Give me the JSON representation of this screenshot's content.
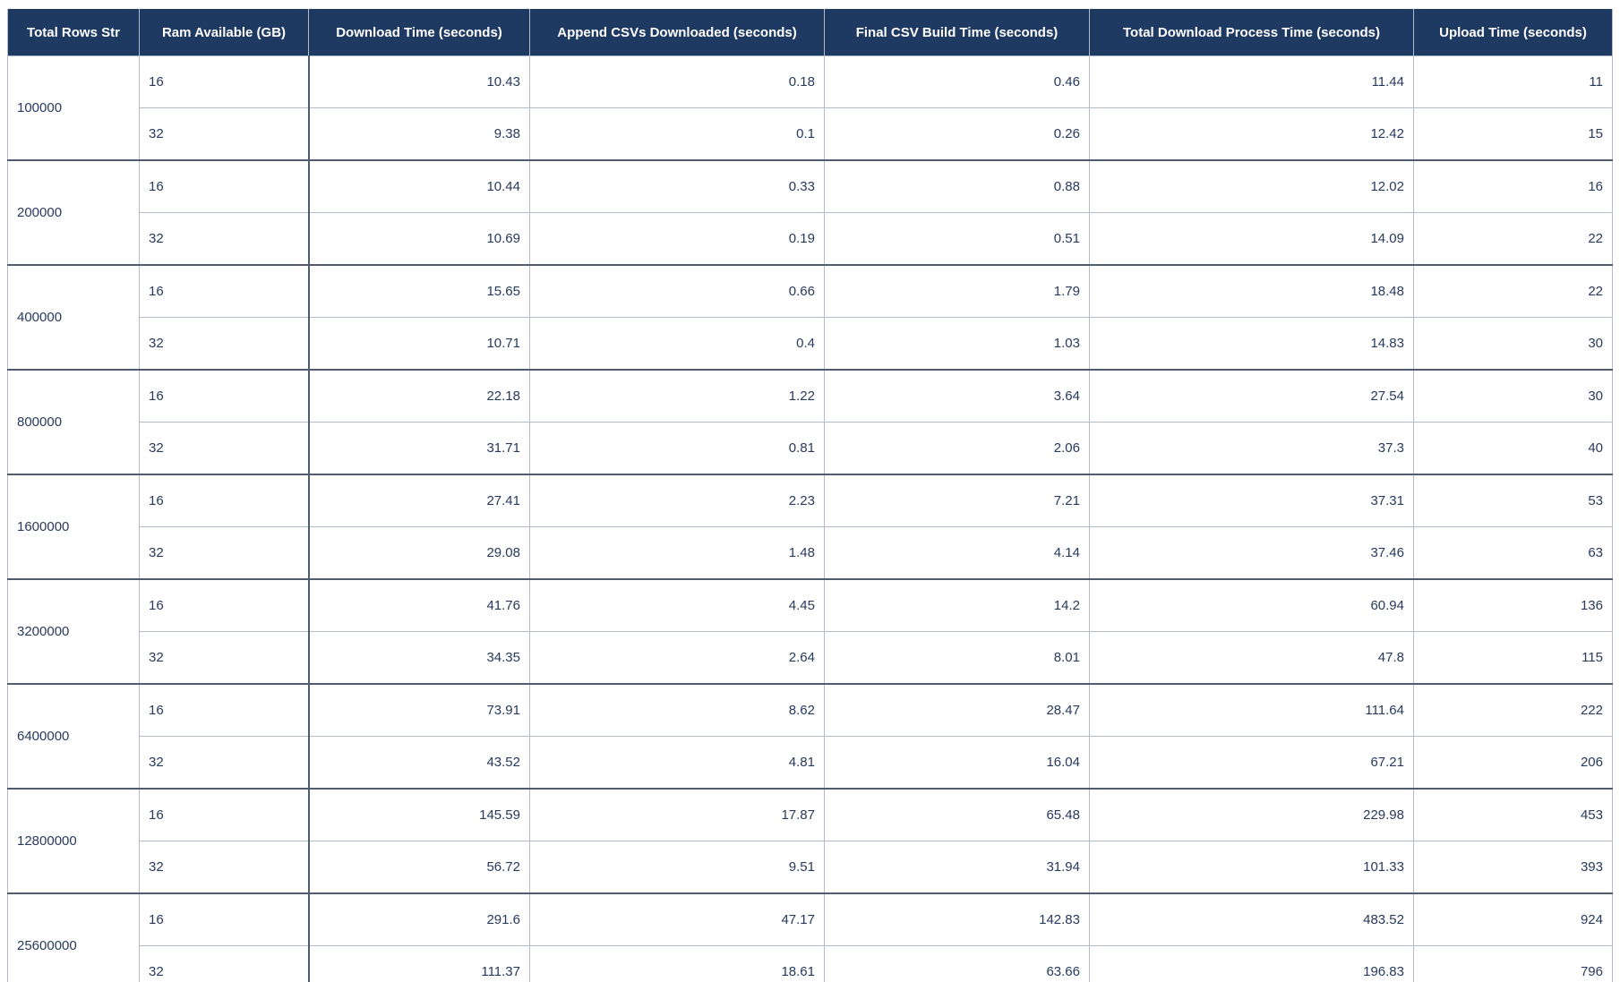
{
  "colors": {
    "header_bg": "#1E3A63",
    "header_text": "#FFFFFF",
    "body_text": "#27395C",
    "border_light": "#B4BCC9",
    "border_dark": "#4F5B6E",
    "background": "#FFFFFF"
  },
  "chart_data": {
    "type": "table",
    "title": "",
    "columns": [
      "Total Rows Str",
      "Ram Available (GB)",
      "Download Time (seconds)",
      "Append CSVs Downloaded (seconds)",
      "Final CSV Build Time (seconds)",
      "Total Download Process Time (seconds)",
      "Upload Time (seconds)"
    ],
    "groups": [
      {
        "total_rows_str": "100000",
        "rows": [
          {
            "ram_gb": "16",
            "download": "10.43",
            "append": "0.18",
            "build": "0.46",
            "total": "11.44",
            "upload": "11"
          },
          {
            "ram_gb": "32",
            "download": "9.38",
            "append": "0.1",
            "build": "0.26",
            "total": "12.42",
            "upload": "15"
          }
        ]
      },
      {
        "total_rows_str": "200000",
        "rows": [
          {
            "ram_gb": "16",
            "download": "10.44",
            "append": "0.33",
            "build": "0.88",
            "total": "12.02",
            "upload": "16"
          },
          {
            "ram_gb": "32",
            "download": "10.69",
            "append": "0.19",
            "build": "0.51",
            "total": "14.09",
            "upload": "22"
          }
        ]
      },
      {
        "total_rows_str": "400000",
        "rows": [
          {
            "ram_gb": "16",
            "download": "15.65",
            "append": "0.66",
            "build": "1.79",
            "total": "18.48",
            "upload": "22"
          },
          {
            "ram_gb": "32",
            "download": "10.71",
            "append": "0.4",
            "build": "1.03",
            "total": "14.83",
            "upload": "30"
          }
        ]
      },
      {
        "total_rows_str": "800000",
        "rows": [
          {
            "ram_gb": "16",
            "download": "22.18",
            "append": "1.22",
            "build": "3.64",
            "total": "27.54",
            "upload": "30"
          },
          {
            "ram_gb": "32",
            "download": "31.71",
            "append": "0.81",
            "build": "2.06",
            "total": "37.3",
            "upload": "40"
          }
        ]
      },
      {
        "total_rows_str": "1600000",
        "rows": [
          {
            "ram_gb": "16",
            "download": "27.41",
            "append": "2.23",
            "build": "7.21",
            "total": "37.31",
            "upload": "53"
          },
          {
            "ram_gb": "32",
            "download": "29.08",
            "append": "1.48",
            "build": "4.14",
            "total": "37.46",
            "upload": "63"
          }
        ]
      },
      {
        "total_rows_str": "3200000",
        "rows": [
          {
            "ram_gb": "16",
            "download": "41.76",
            "append": "4.45",
            "build": "14.2",
            "total": "60.94",
            "upload": "136"
          },
          {
            "ram_gb": "32",
            "download": "34.35",
            "append": "2.64",
            "build": "8.01",
            "total": "47.8",
            "upload": "115"
          }
        ]
      },
      {
        "total_rows_str": "6400000",
        "rows": [
          {
            "ram_gb": "16",
            "download": "73.91",
            "append": "8.62",
            "build": "28.47",
            "total": "111.64",
            "upload": "222"
          },
          {
            "ram_gb": "32",
            "download": "43.52",
            "append": "4.81",
            "build": "16.04",
            "total": "67.21",
            "upload": "206"
          }
        ]
      },
      {
        "total_rows_str": "12800000",
        "rows": [
          {
            "ram_gb": "16",
            "download": "145.59",
            "append": "17.87",
            "build": "65.48",
            "total": "229.98",
            "upload": "453"
          },
          {
            "ram_gb": "32",
            "download": "56.72",
            "append": "9.51",
            "build": "31.94",
            "total": "101.33",
            "upload": "393"
          }
        ]
      },
      {
        "total_rows_str": "25600000",
        "rows": [
          {
            "ram_gb": "16",
            "download": "291.6",
            "append": "47.17",
            "build": "142.83",
            "total": "483.52",
            "upload": "924"
          },
          {
            "ram_gb": "32",
            "download": "111.37",
            "append": "18.61",
            "build": "63.66",
            "total": "196.83",
            "upload": "796"
          }
        ]
      }
    ]
  }
}
